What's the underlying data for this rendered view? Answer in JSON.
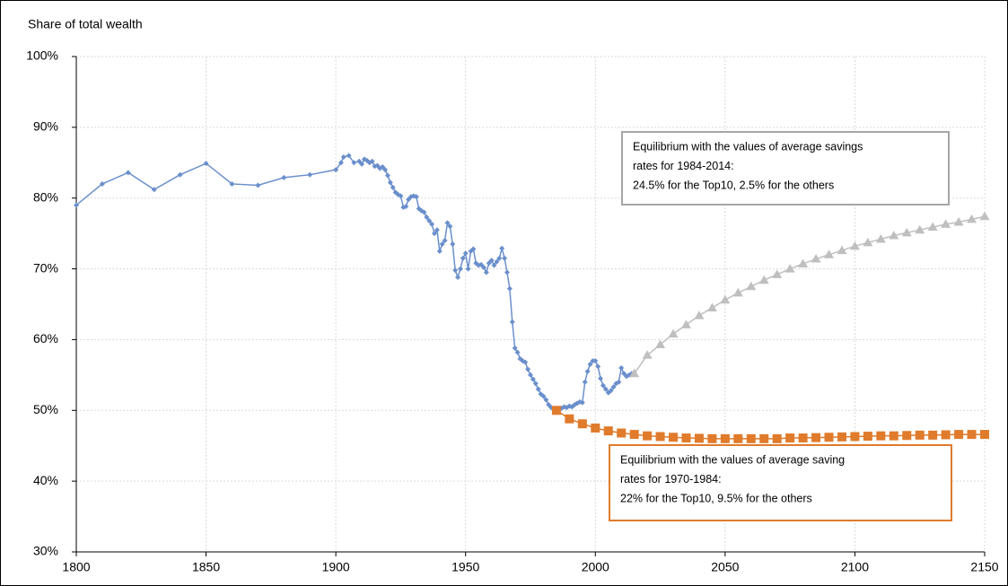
{
  "chart_data": {
    "type": "line",
    "ylabel": "Share of total wealth",
    "xlim": [
      1800,
      2150
    ],
    "xticks": [
      1800,
      1850,
      1900,
      1950,
      2000,
      2050,
      2100,
      2150
    ],
    "ylim": [
      30,
      100
    ],
    "yticks": [
      {
        "value": 30,
        "label": "30%"
      },
      {
        "value": 40,
        "label": "40%"
      },
      {
        "value": 50,
        "label": "50%"
      },
      {
        "value": 60,
        "label": "60%"
      },
      {
        "value": 70,
        "label": "70%"
      },
      {
        "value": 80,
        "label": "80%"
      },
      {
        "value": 90,
        "label": "90%"
      },
      {
        "value": 100,
        "label": "100%"
      }
    ],
    "grid": true,
    "series": [
      {
        "color": "#6a8fcc",
        "marker": "diamond",
        "x": [
          1800,
          1810,
          1820,
          1830,
          1840,
          1850,
          1860,
          1870,
          1880,
          1890,
          1900,
          1902,
          1903,
          1905,
          1907,
          1909,
          1910,
          1911,
          1912,
          1913,
          1914,
          1915,
          1916,
          1917,
          1918,
          1919,
          1920,
          1921,
          1922,
          1923,
          1924,
          1925,
          1926,
          1927,
          1928,
          1929,
          1930,
          1931,
          1932,
          1933,
          1934,
          1935,
          1936,
          1937,
          1938,
          1939,
          1940,
          1941,
          1942,
          1943,
          1944,
          1945,
          1946,
          1947,
          1948,
          1949,
          1950,
          1951,
          1952,
          1953,
          1954,
          1955,
          1956,
          1957,
          1958,
          1959,
          1960,
          1961,
          1962,
          1963,
          1964,
          1965,
          1966,
          1967,
          1968,
          1969,
          1970,
          1971,
          1972,
          1973,
          1974,
          1975,
          1976,
          1977,
          1978,
          1979,
          1980,
          1981,
          1982,
          1983,
          1984,
          1985,
          1986,
          1987,
          1988,
          1989,
          1990,
          1991,
          1992,
          1993,
          1994,
          1995,
          1996,
          1997,
          1998,
          1999,
          2000,
          2001,
          2002,
          2003,
          2004,
          2005,
          2006,
          2007,
          2008,
          2009,
          2010,
          2011,
          2012,
          2013,
          2014
        ],
        "values": [
          79,
          82,
          83.6,
          81.2,
          83.3,
          84.9,
          82,
          81.8,
          82.9,
          83.3,
          84,
          85,
          85.8,
          86,
          85,
          85.2,
          84.8,
          85.5,
          85.3,
          85,
          85.2,
          84.5,
          84.6,
          84.2,
          84.4,
          84,
          83.2,
          82.2,
          81.5,
          80.8,
          80.5,
          80.3,
          78.7,
          78.8,
          79.8,
          80.2,
          80.3,
          80.2,
          78.5,
          78.2,
          78,
          77.3,
          76.8,
          76.3,
          75,
          75.5,
          72.5,
          73.5,
          74,
          76.5,
          76,
          73.5,
          69.8,
          68.8,
          70,
          71.5,
          72.2,
          70,
          72.5,
          72.8,
          70.8,
          70.5,
          70.6,
          70.2,
          69.5,
          70.8,
          71.2,
          70.5,
          71,
          71.5,
          72.9,
          71.5,
          69.5,
          67.2,
          62.5,
          58.8,
          58.2,
          57.3,
          57,
          56.8,
          55.8,
          55,
          54.4,
          53.8,
          53,
          52.3,
          52,
          51.5,
          50.8,
          50.4,
          50.2,
          50.1,
          50.2,
          50.3,
          50.5,
          50.4,
          50.6,
          50.5,
          50.8,
          51,
          51.2,
          51.1,
          54,
          55.5,
          56.5,
          57,
          57,
          56.2,
          54.5,
          53.5,
          53,
          52.5,
          52.8,
          53.3,
          53.8,
          54,
          56,
          55.2,
          54.8,
          55,
          55.2
        ]
      },
      {
        "color": "#bfbfbf",
        "marker": "triangle",
        "x": [
          2015,
          2020,
          2025,
          2030,
          2035,
          2040,
          2045,
          2050,
          2055,
          2060,
          2065,
          2070,
          2075,
          2080,
          2085,
          2090,
          2095,
          2100,
          2105,
          2110,
          2115,
          2120,
          2125,
          2130,
          2135,
          2140,
          2145,
          2150
        ],
        "values": [
          55.2,
          57.8,
          59.3,
          60.8,
          62.1,
          63.4,
          64.5,
          65.6,
          66.6,
          67.5,
          68.4,
          69.2,
          70,
          70.7,
          71.4,
          72,
          72.6,
          73.2,
          73.7,
          74.2,
          74.7,
          75.1,
          75.5,
          75.9,
          76.3,
          76.6,
          77,
          77.4
        ]
      },
      {
        "color": "#e07b2c",
        "marker": "square",
        "x": [
          1985,
          1990,
          1995,
          2000,
          2005,
          2010,
          2015,
          2020,
          2025,
          2030,
          2035,
          2040,
          2045,
          2050,
          2055,
          2060,
          2065,
          2070,
          2075,
          2080,
          2085,
          2090,
          2095,
          2100,
          2105,
          2110,
          2115,
          2120,
          2125,
          2130,
          2135,
          2140,
          2145,
          2150
        ],
        "values": [
          50,
          48.8,
          48.1,
          47.5,
          47.1,
          46.8,
          46.6,
          46.4,
          46.3,
          46.2,
          46.1,
          46.05,
          46,
          46,
          46,
          46,
          46,
          46,
          46.1,
          46.1,
          46.15,
          46.2,
          46.25,
          46.3,
          46.35,
          46.4,
          46.4,
          46.45,
          46.5,
          46.5,
          46.55,
          46.6,
          46.6,
          46.6
        ]
      }
    ],
    "annotations": [
      {
        "color": "#a6a6a6",
        "lines": [
          "Equilibrium with the values of average savings",
          "rates for 1984-2014:",
          "24.5% for the Top10, 2.5% for the others"
        ]
      },
      {
        "color": "#e07b2c",
        "lines": [
          "Equilibrium with the values of average saving",
          "rates for 1970-1984:",
          "22% for the Top10, 9.5% for the others"
        ]
      }
    ]
  }
}
